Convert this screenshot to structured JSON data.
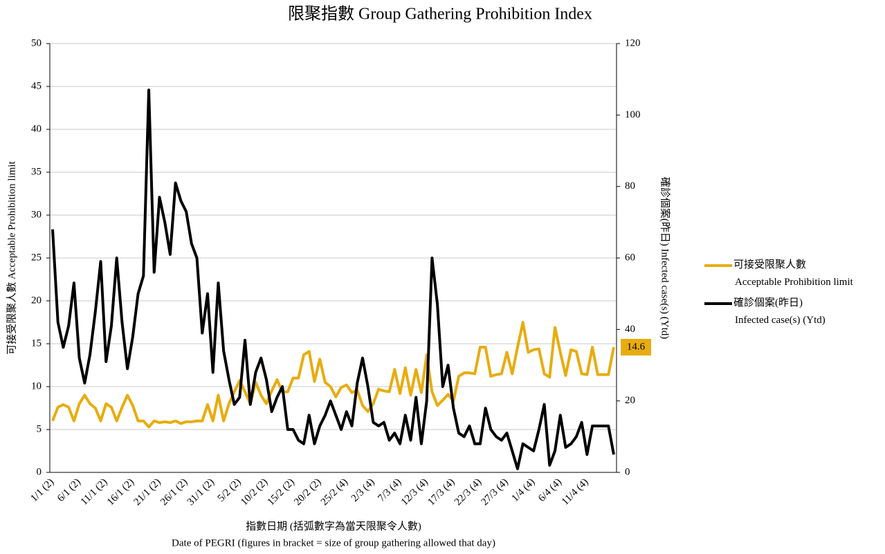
{
  "chart_data": {
    "type": "line",
    "title": "限聚指數 Group Gathering Prohibition Index",
    "x_label": "指數日期 (括弧數字為當天限聚令人數)",
    "x_label_2": "Date of PEGRI (figures in bracket = size of group gathering allowed that day)",
    "y_label": "可接受限聚人數 Acceptable Prohibition limit",
    "y2_label": "確診個案(昨日) Infected case(s) (Ytd)",
    "categories": [
      "1/1 (2)",
      null,
      null,
      null,
      null,
      "6/1 (2)",
      null,
      null,
      null,
      null,
      "11/1 (2)",
      null,
      null,
      null,
      null,
      "16/1 (2)",
      null,
      null,
      null,
      null,
      "21/1 (2)",
      null,
      null,
      null,
      null,
      "26/1 (2)",
      null,
      null,
      null,
      null,
      "31/1 (2)",
      null,
      null,
      null,
      null,
      "5/2 (2)",
      null,
      null,
      null,
      null,
      "10/2 (2)",
      null,
      null,
      null,
      null,
      "15/2 (2)",
      null,
      null,
      null,
      null,
      "20/2 (2)",
      null,
      null,
      null,
      null,
      "25/2 (4)",
      null,
      null,
      null,
      null,
      "2/3 (4)",
      null,
      null,
      null,
      null,
      "7/3 (4)",
      null,
      null,
      null,
      null,
      "12/3 (4)",
      null,
      null,
      null,
      null,
      "17/3 (4)",
      null,
      null,
      null,
      null,
      "22/3 (4)",
      null,
      null,
      null,
      null,
      "27/3 (4)",
      null,
      null,
      null,
      null,
      "1/4 (4)",
      null,
      null,
      null,
      null,
      "6/4 (4)",
      null,
      null,
      null,
      null,
      "11/4 (4)",
      null,
      null,
      null,
      null,
      null
    ],
    "series": [
      {
        "name": "可接受限聚人數\nAcceptable Prohibition limit",
        "color": "#e8ac10",
        "values": [
          6,
          7.6,
          7.9,
          7.6,
          6,
          8,
          9,
          8,
          7.5,
          6,
          8,
          7.6,
          6,
          7.6,
          9,
          7.8,
          6,
          6,
          5.3,
          6,
          5.8,
          5.9,
          5.8,
          6,
          5.7,
          5.9,
          5.9,
          6,
          6,
          7.9,
          6,
          9,
          6,
          8,
          9.4,
          10.7,
          9.4,
          8,
          10.5,
          9,
          8,
          9.5,
          10.8,
          9.4,
          9.4,
          11,
          11,
          13.7,
          14.1,
          10.6,
          13.2,
          10.5,
          10,
          8.8,
          9.9,
          10.2,
          9.3,
          9.6,
          7.8,
          7.1,
          8,
          9.7,
          9.5,
          9.4,
          12,
          9.2,
          12.2,
          9,
          12,
          9.3,
          13.7,
          9.4,
          7.8,
          8.4,
          9.1,
          8.3,
          11.2,
          11.6,
          11.6,
          11.5,
          14.6,
          14.6,
          11.2,
          11.4,
          11.5,
          14,
          11.5,
          14.6,
          17.5,
          14,
          14.3,
          14.4,
          11.5,
          11.1,
          16.9,
          14,
          11.3,
          14.3,
          14.1,
          11.5,
          11.4,
          14.6,
          11.4,
          11.4,
          11.4,
          14.6
        ]
      },
      {
        "name": "確診個案(昨日)\nInfected case(s) (Ytd)",
        "color": "#000000",
        "axis": "y2",
        "values": [
          68,
          42,
          35,
          41,
          53,
          32,
          25,
          33,
          45,
          59,
          31,
          41,
          60,
          42,
          29,
          38,
          50,
          55,
          107,
          56,
          77,
          70,
          61,
          81,
          76,
          73,
          64,
          60,
          39,
          50,
          28,
          53,
          34,
          26,
          19,
          21,
          37,
          19,
          28,
          32,
          26,
          17,
          21,
          24,
          12,
          12,
          9,
          8,
          16,
          8,
          13,
          16,
          20,
          16,
          12,
          17,
          13,
          25,
          32,
          24,
          14,
          13,
          14,
          9,
          11,
          8,
          16,
          9,
          21,
          8,
          20,
          60,
          47,
          24,
          30,
          18,
          11,
          10,
          13,
          8,
          8,
          18,
          12,
          10,
          9,
          11,
          6,
          1,
          8,
          7,
          6,
          12,
          19,
          2,
          6,
          16,
          7,
          8,
          10,
          14,
          5,
          13,
          13,
          13,
          13,
          5
        ]
      }
    ],
    "ylim": [
      0,
      50
    ],
    "yticks": [
      0,
      5,
      10,
      15,
      20,
      25,
      30,
      35,
      40,
      45,
      50
    ],
    "y2lim": [
      0,
      120
    ],
    "y2ticks": [
      0,
      20,
      40,
      60,
      80,
      100,
      120
    ],
    "grid": true,
    "legend": "right"
  }
}
